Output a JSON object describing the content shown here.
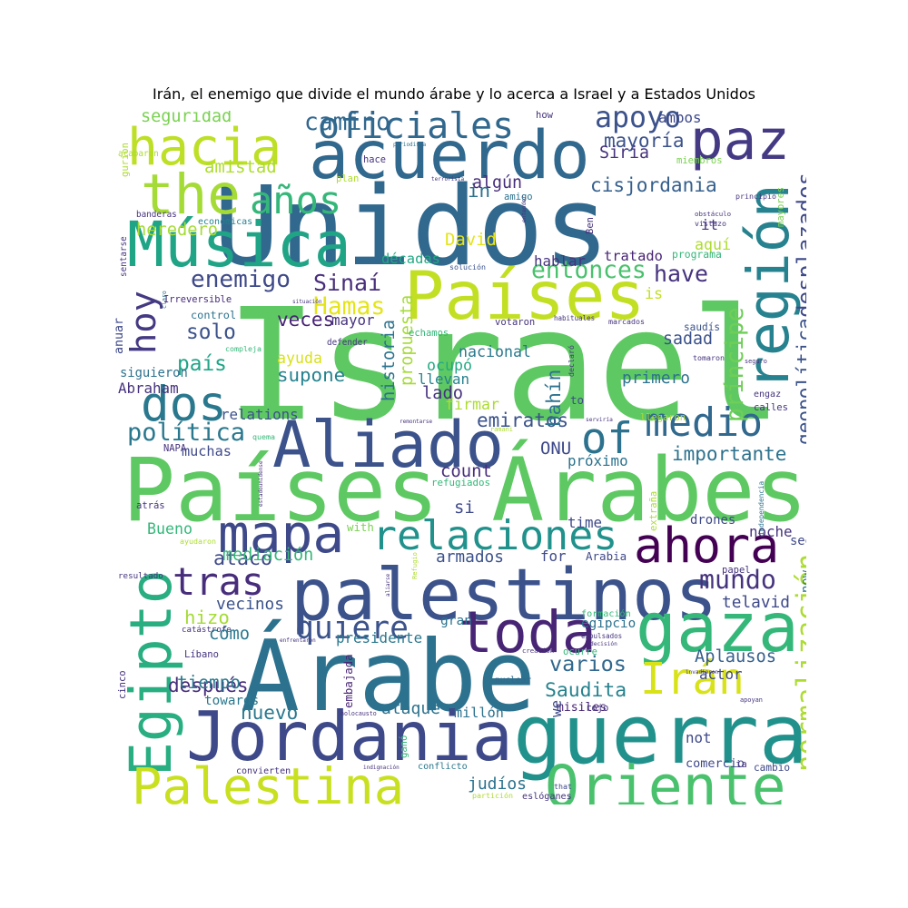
{
  "chart_data": {
    "type": "wordcloud",
    "title": "Irán, el enemigo que divide el mundo árabe y lo acerca a Israel y a Estados Unidos",
    "background": "#ffffff",
    "colormap": "viridis",
    "words": [
      {
        "text": "Israel",
        "color": "#5ec962"
      },
      {
        "text": "Países Árabes",
        "color": "#5ec962"
      },
      {
        "text": "Unidos",
        "color": "#31688e"
      },
      {
        "text": "palestinos",
        "color": "#3b528b"
      },
      {
        "text": "Árabe",
        "color": "#2c728e"
      },
      {
        "text": "acuerdo",
        "color": "#31688e"
      },
      {
        "text": "guerra",
        "color": "#21918c"
      },
      {
        "text": "Países",
        "color": "#c2df23"
      },
      {
        "text": "Jordania",
        "color": "#3e4989"
      },
      {
        "text": "Aliado",
        "color": "#3b528b"
      },
      {
        "text": "Música",
        "color": "#20a486"
      },
      {
        "text": "gaza",
        "color": "#35b779"
      },
      {
        "text": "Egipto",
        "color": "#28ae80"
      },
      {
        "text": "región",
        "color": "#26828e"
      },
      {
        "text": "Palestina",
        "color": "#c8e020"
      },
      {
        "text": "paz",
        "color": "#443983"
      },
      {
        "text": "Oriente",
        "color": "#4ac16d"
      },
      {
        "text": "toda",
        "color": "#482475"
      },
      {
        "text": "hacia",
        "color": "#bddf26"
      },
      {
        "text": "mapa",
        "color": "#3e4989"
      },
      {
        "text": "ahora",
        "color": "#440154"
      },
      {
        "text": "the",
        "color": "#a5db36"
      },
      {
        "text": "medio",
        "color": "#31688e"
      },
      {
        "text": "relaciones",
        "color": "#21918c"
      },
      {
        "text": "Irán",
        "color": "#d8e219"
      },
      {
        "text": "dos",
        "color": "#2a788e"
      },
      {
        "text": "of",
        "color": "#2c728e"
      },
      {
        "text": "años",
        "color": "#35b779"
      },
      {
        "text": "tras",
        "color": "#472d7b"
      },
      {
        "text": "hoy",
        "color": "#443983"
      },
      {
        "text": "apoyo",
        "color": "#3b528b"
      },
      {
        "text": "oficiales",
        "color": "#31688e"
      },
      {
        "text": "enemigo",
        "color": "#3e4989"
      },
      {
        "text": "quiere",
        "color": "#3b528b"
      },
      {
        "text": "política",
        "color": "#2a788e"
      },
      {
        "text": "cisjordania",
        "color": "#355f8d"
      },
      {
        "text": "varios",
        "color": "#31688e"
      },
      {
        "text": "mundo",
        "color": "#46337e"
      },
      {
        "text": "entonces",
        "color": "#4ac16d"
      },
      {
        "text": "have",
        "color": "#46337e"
      },
      {
        "text": "Hamas",
        "color": "#e5e419"
      },
      {
        "text": "Saudita",
        "color": "#26828e"
      },
      {
        "text": "atacó",
        "color": "#3e4989"
      },
      {
        "text": "Sinaí",
        "color": "#472d7b"
      },
      {
        "text": "hizo",
        "color": "#a5db36"
      },
      {
        "text": "camino",
        "color": "#31688e"
      },
      {
        "text": "país",
        "color": "#20a486"
      },
      {
        "text": "solo",
        "color": "#3b528b"
      },
      {
        "text": "geopolítica",
        "color": "#3b528b"
      },
      {
        "text": "normalización",
        "color": "#addc30"
      },
      {
        "text": "desplazados",
        "color": "#3e4989"
      },
      {
        "text": "príncipe",
        "color": "#6ece58"
      },
      {
        "text": "Aplausos",
        "color": "#355f8d"
      },
      {
        "text": "importante",
        "color": "#2c728e"
      },
      {
        "text": "emiratos",
        "color": "#3b528b"
      },
      {
        "text": "nuevo",
        "color": "#2a788e"
      },
      {
        "text": "después",
        "color": "#472d7b"
      },
      {
        "text": "tiempo",
        "color": "#2a788e"
      },
      {
        "text": "primero",
        "color": "#2c728e"
      },
      {
        "text": "mayoría",
        "color": "#3b528b"
      },
      {
        "text": "supone",
        "color": "#26828e"
      },
      {
        "text": "veces",
        "color": "#482475"
      },
      {
        "text": "presidente",
        "color": "#2a788e"
      },
      {
        "text": "historia",
        "color": "#2c728e"
      },
      {
        "text": "propuesta",
        "color": "#a5db36"
      },
      {
        "text": "muchas",
        "color": "#3e4989"
      },
      {
        "text": "Siria",
        "color": "#46337e"
      },
      {
        "text": "firmar",
        "color": "#addc30"
      },
      {
        "text": "ataque",
        "color": "#2c728e"
      },
      {
        "text": "judíos",
        "color": "#2c728e"
      },
      {
        "text": "mediación",
        "color": "#35b779"
      },
      {
        "text": "cómo",
        "color": "#2a788e"
      },
      {
        "text": "armados",
        "color": "#3b528b"
      },
      {
        "text": "décadas",
        "color": "#22a884"
      },
      {
        "text": "heredero",
        "color": "#a5db36"
      },
      {
        "text": "seguridad",
        "color": "#7ad151"
      },
      {
        "text": "amistad",
        "color": "#addc30"
      },
      {
        "text": "is",
        "color": "#c2df23"
      },
      {
        "text": "in",
        "color": "#2c728e"
      },
      {
        "text": "aquí",
        "color": "#addc30"
      },
      {
        "text": "tratado",
        "color": "#482475"
      },
      {
        "text": "algún",
        "color": "#472d7b"
      },
      {
        "text": "nacional",
        "color": "#2a788e"
      },
      {
        "text": "lado",
        "color": "#46337e"
      },
      {
        "text": "count",
        "color": "#472d7b"
      },
      {
        "text": "Bueno",
        "color": "#35b779"
      },
      {
        "text": "vecinos",
        "color": "#3b528b"
      },
      {
        "text": "si",
        "color": "#3e4989"
      },
      {
        "text": "ONU",
        "color": "#3e4989"
      },
      {
        "text": "bahín",
        "color": "#2c728e"
      },
      {
        "text": "ocupó",
        "color": "#22a884"
      },
      {
        "text": "ayuda",
        "color": "#d8e219"
      },
      {
        "text": "control",
        "color": "#2c728e"
      },
      {
        "text": "telavid",
        "color": "#3e4989"
      },
      {
        "text": "towards",
        "color": "#2a788e"
      },
      {
        "text": "David",
        "color": "#e5e419"
      },
      {
        "text": "sadad",
        "color": "#3b528b"
      },
      {
        "text": "llevan",
        "color": "#26828e"
      },
      {
        "text": "conflicto",
        "color": "#2a788e"
      },
      {
        "text": "millón",
        "color": "#2c728e"
      },
      {
        "text": "próximo",
        "color": "#2c728e"
      },
      {
        "text": "refugiados",
        "color": "#35b779"
      },
      {
        "text": "siguieron",
        "color": "#2c728e"
      },
      {
        "text": "Abraham",
        "color": "#46337e"
      },
      {
        "text": "económicas",
        "color": "#26828e"
      },
      {
        "text": "solución",
        "color": "#3b528b"
      },
      {
        "text": "noche",
        "color": "#46337e"
      },
      {
        "text": "comercio",
        "color": "#3e4989"
      },
      {
        "text": "cambio",
        "color": "#3e4989"
      },
      {
        "text": "actor",
        "color": "#3e4989"
      },
      {
        "text": "relations",
        "color": "#3b528b"
      },
      {
        "text": "Irreversible",
        "color": "#472d7b"
      },
      {
        "text": "embajada",
        "color": "#482475"
      },
      {
        "text": "egipcio",
        "color": "#2c728e"
      },
      {
        "text": "nuclear",
        "color": "#31688e"
      },
      {
        "text": "misiles",
        "color": "#482475"
      },
      {
        "text": "Arabia",
        "color": "#3e4989"
      },
      {
        "text": "drones",
        "color": "#3e4989"
      },
      {
        "text": "anuar",
        "color": "#3e4989"
      },
      {
        "text": "mayor",
        "color": "#46337e"
      },
      {
        "text": "programa",
        "color": "#35b779"
      },
      {
        "text": "hablar",
        "color": "#46337e"
      },
      {
        "text": "habituales",
        "color": "#46337e"
      },
      {
        "text": "saudís",
        "color": "#3b528b"
      },
      {
        "text": "ambos",
        "color": "#3e4989"
      },
      {
        "text": "estadounidense",
        "color": "#472d7b"
      },
      {
        "text": "claro",
        "color": "#2c728e"
      },
      {
        "text": "we",
        "color": "#3e4989"
      },
      {
        "text": "gran",
        "color": "#2c728e"
      },
      {
        "text": "time",
        "color": "#3e4989"
      },
      {
        "text": "with",
        "color": "#7ad151"
      },
      {
        "text": "for",
        "color": "#3e4989"
      },
      {
        "text": "now",
        "color": "#2c728e"
      },
      {
        "text": "see",
        "color": "#3e4989"
      },
      {
        "text": "not",
        "color": "#3e4989"
      },
      {
        "text": "that",
        "color": "#3e4989"
      },
      {
        "text": "to",
        "color": "#3e4989"
      },
      {
        "text": "it",
        "color": "#46337e"
      },
      {
        "text": "how",
        "color": "#46337e"
      },
      {
        "text": "periodista",
        "color": "#2c728e"
      },
      {
        "text": "hace",
        "color": "#46337e"
      },
      {
        "text": "plan",
        "color": "#addc30"
      },
      {
        "text": "terrorista",
        "color": "#46337e"
      },
      {
        "text": "amigo",
        "color": "#2c728e"
      },
      {
        "text": "entender",
        "color": "#46337e"
      },
      {
        "text": "Ben",
        "color": "#46337e"
      },
      {
        "text": "miembros",
        "color": "#7ad151"
      },
      {
        "text": "principio",
        "color": "#46337e"
      },
      {
        "text": "mayores",
        "color": "#7ad151"
      },
      {
        "text": "obstáculo",
        "color": "#46337e"
      },
      {
        "text": "vistazo",
        "color": "#46337e"
      },
      {
        "text": "gurion",
        "color": "#addc30"
      },
      {
        "text": "acabaron",
        "color": "#addc30"
      },
      {
        "text": "banderas",
        "color": "#46337e"
      },
      {
        "text": "sentarse",
        "color": "#46337e"
      },
      {
        "text": "votaron",
        "color": "#46337e"
      },
      {
        "text": "marcados",
        "color": "#46337e"
      },
      {
        "text": "echamos",
        "color": "#35b779"
      },
      {
        "text": "defender",
        "color": "#46337e"
      },
      {
        "text": "compleja",
        "color": "#35b779"
      },
      {
        "text": "declaró",
        "color": "#46337e"
      },
      {
        "text": "tomaron",
        "color": "#46337e"
      },
      {
        "text": "seguro",
        "color": "#46337e"
      },
      {
        "text": "engaz",
        "color": "#46337e"
      },
      {
        "text": "calles",
        "color": "#46337e"
      },
      {
        "text": "llegaron",
        "color": "#addc30"
      },
      {
        "text": "remontarse",
        "color": "#46337e"
      },
      {
        "text": "serviría",
        "color": "#46337e"
      },
      {
        "text": "ramani",
        "color": "#addc30"
      },
      {
        "text": "quema",
        "color": "#35b779"
      },
      {
        "text": "NAPA",
        "color": "#46337e"
      },
      {
        "text": "atrás",
        "color": "#46337e"
      },
      {
        "text": "extraña",
        "color": "#addc30"
      },
      {
        "text": "independencia",
        "color": "#2c728e"
      },
      {
        "text": "ayudaron",
        "color": "#addc30"
      },
      {
        "text": "Refugio",
        "color": "#addc30"
      },
      {
        "text": "aliarse",
        "color": "#46337e"
      },
      {
        "text": "papel",
        "color": "#46337e"
      },
      {
        "text": "resultado",
        "color": "#46337e"
      },
      {
        "text": "formación",
        "color": "#35b779"
      },
      {
        "text": "expulsados",
        "color": "#46337e"
      },
      {
        "text": "decisión",
        "color": "#46337e"
      },
      {
        "text": "cinco",
        "color": "#46337e"
      },
      {
        "text": "catástrofe",
        "color": "#46337e"
      },
      {
        "text": "enfrentaron",
        "color": "#46337e"
      },
      {
        "text": "Líbano",
        "color": "#46337e"
      },
      {
        "text": "creación",
        "color": "#46337e"
      },
      {
        "text": "ocurre",
        "color": "#35b779"
      },
      {
        "text": "invadieron",
        "color": "#46337e"
      },
      {
        "text": "rojo",
        "color": "#46337e"
      },
      {
        "text": "holocausto",
        "color": "#46337e"
      },
      {
        "text": "apoyan",
        "color": "#46337e"
      },
      {
        "text": "ganó",
        "color": "#35b779"
      },
      {
        "text": "convierten",
        "color": "#46337e"
      },
      {
        "text": "indignación",
        "color": "#46337e"
      },
      {
        "text": "ia",
        "color": "#46337e"
      },
      {
        "text": "partición",
        "color": "#addc30"
      },
      {
        "text": "eslóganes",
        "color": "#46337e"
      },
      {
        "text": "situación",
        "color": "#46337e"
      },
      {
        "text": "D",
        "color": "#46337e"
      }
    ]
  }
}
